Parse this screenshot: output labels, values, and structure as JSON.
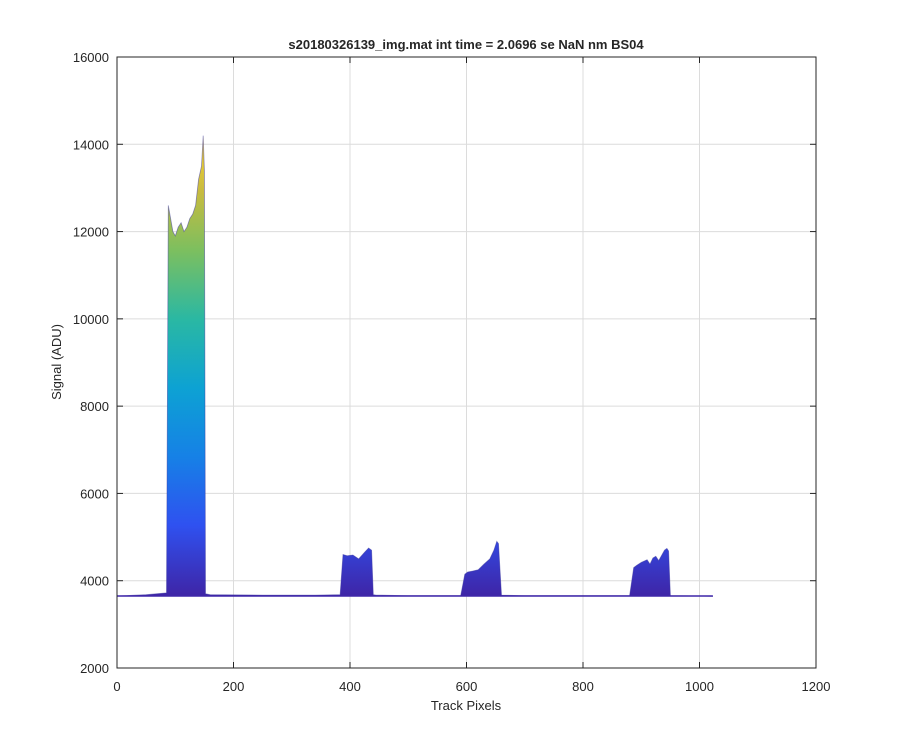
{
  "chart_data": {
    "type": "area",
    "title": "s20180326139_img.mat int time = 2.0696 se  NaN nm BS04",
    "xlabel": "Track Pixels",
    "ylabel": "Signal (ADU)",
    "xlim": [
      0,
      1200
    ],
    "ylim": [
      2000,
      16000
    ],
    "xticks": [
      0,
      200,
      400,
      600,
      800,
      1000,
      1200
    ],
    "yticks": [
      2000,
      4000,
      6000,
      8000,
      10000,
      12000,
      14000,
      16000
    ],
    "xtick_labels": [
      "0",
      "200",
      "400",
      "600",
      "800",
      "1000",
      "1200"
    ],
    "ytick_labels": [
      "2000",
      "4000",
      "6000",
      "8000",
      "10000",
      "12000",
      "14000",
      "16000"
    ],
    "grid": true,
    "colormap": "parula",
    "baseline": 3650,
    "envelope": {
      "x": [
        0,
        50,
        85,
        88,
        92,
        96,
        100,
        105,
        110,
        115,
        120,
        125,
        130,
        135,
        140,
        145,
        148,
        150,
        152,
        160,
        250,
        340,
        383,
        388,
        395,
        405,
        415,
        425,
        432,
        437,
        440,
        445,
        500,
        590,
        597,
        602,
        610,
        620,
        630,
        640,
        647,
        652,
        655,
        660,
        700,
        880,
        887,
        892,
        900,
        910,
        915,
        920,
        925,
        930,
        935,
        940,
        944,
        947,
        950,
        1000,
        1023
      ],
      "y": [
        3650,
        3680,
        3720,
        12600,
        12300,
        12000,
        11900,
        12100,
        12200,
        12000,
        12100,
        12300,
        12400,
        12600,
        13200,
        13500,
        14200,
        13400,
        3700,
        3680,
        3670,
        3670,
        3680,
        4600,
        4570,
        4590,
        4500,
        4650,
        4750,
        4700,
        3680,
        3670,
        3660,
        3660,
        4150,
        4200,
        4220,
        4250,
        4380,
        4500,
        4700,
        4900,
        4850,
        3670,
        3660,
        3660,
        4300,
        4350,
        4420,
        4480,
        4380,
        4520,
        4560,
        4460,
        4580,
        4700,
        4740,
        4680,
        3660,
        3650,
        3640
      ]
    }
  }
}
